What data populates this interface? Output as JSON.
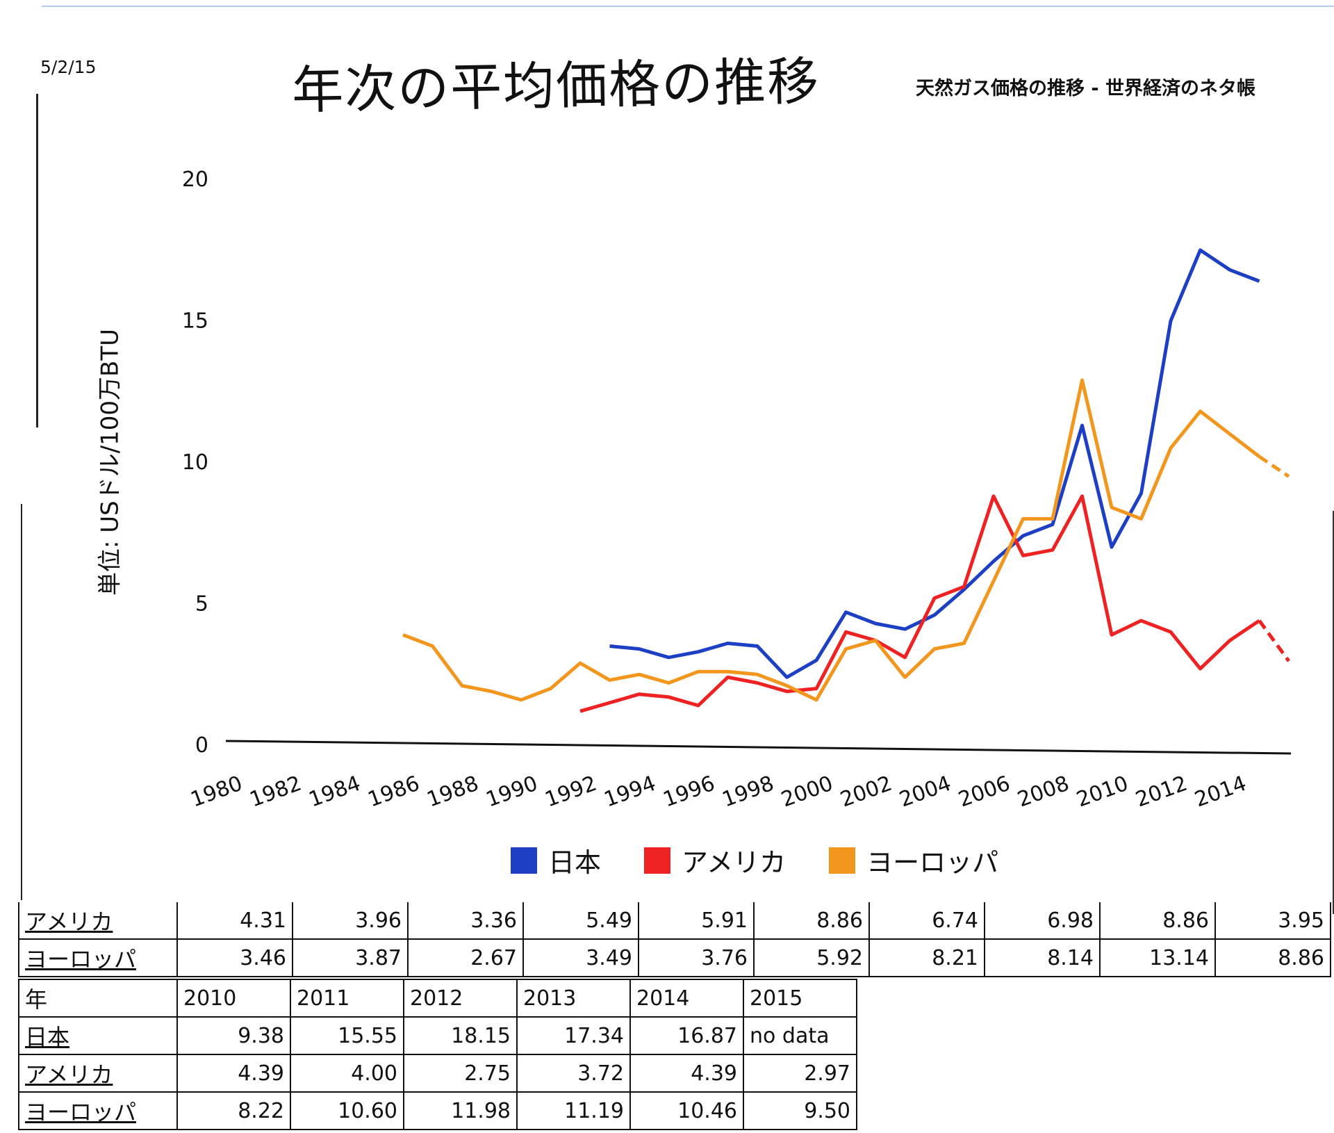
{
  "header": {
    "date_stamp": "5/2/15",
    "handwritten_title": "年次の平均価格の推移",
    "source_title": "天然ガス価格の推移 - 世界経済のネタ帳"
  },
  "chart_data": {
    "type": "line",
    "title": "年次の平均価格の推移",
    "xlabel": "",
    "ylabel": "単位: USドル/100万BTU",
    "ylim": [
      0,
      20
    ],
    "yticks": [
      "0",
      "5",
      "10",
      "15",
      "20"
    ],
    "xticks": [
      "1980",
      "1982",
      "1984",
      "1986",
      "1988",
      "1990",
      "1992",
      "1994",
      "1996",
      "1998",
      "2000",
      "2002",
      "2004",
      "2006",
      "2008",
      "2010",
      "2012",
      "2014"
    ],
    "legend_position": "bottom",
    "grid": false,
    "series": [
      {
        "name": "日本",
        "color": "#1d3fc4",
        "points": [
          [
            1993,
            3.5
          ],
          [
            1994,
            3.4
          ],
          [
            1995,
            3.1
          ],
          [
            1996,
            3.3
          ],
          [
            1997,
            3.6
          ],
          [
            1998,
            3.5
          ],
          [
            1999,
            2.4
          ],
          [
            2000,
            3.0
          ],
          [
            2001,
            4.7
          ],
          [
            2002,
            4.3
          ],
          [
            2003,
            4.1
          ],
          [
            2004,
            4.6
          ],
          [
            2005,
            5.5
          ],
          [
            2006,
            6.5
          ],
          [
            2007,
            7.4
          ],
          [
            2008,
            7.8
          ],
          [
            2009,
            11.3
          ],
          [
            2010,
            7.0
          ],
          [
            2011,
            8.9
          ],
          [
            2012,
            15.0
          ],
          [
            2013,
            17.5
          ],
          [
            2014,
            16.8
          ],
          [
            2015,
            16.4
          ]
        ]
      },
      {
        "name": "アメリカ",
        "color": "#ee2222",
        "points": [
          [
            1992,
            1.2
          ],
          [
            1993,
            1.5
          ],
          [
            1994,
            1.8
          ],
          [
            1995,
            1.7
          ],
          [
            1996,
            1.4
          ],
          [
            1997,
            2.4
          ],
          [
            1998,
            2.2
          ],
          [
            1999,
            1.9
          ],
          [
            2000,
            2.0
          ],
          [
            2001,
            4.0
          ],
          [
            2002,
            3.7
          ],
          [
            2003,
            3.1
          ],
          [
            2004,
            5.2
          ],
          [
            2005,
            5.6
          ],
          [
            2006,
            8.8
          ],
          [
            2007,
            6.7
          ],
          [
            2008,
            6.9
          ],
          [
            2009,
            8.8
          ],
          [
            2010,
            3.9
          ],
          [
            2011,
            4.4
          ],
          [
            2012,
            4.0
          ],
          [
            2013,
            2.7
          ],
          [
            2014,
            3.7
          ],
          [
            2015,
            4.4
          ]
        ],
        "dashed_tail": [
          [
            2015,
            4.4
          ],
          [
            2016,
            2.97
          ]
        ]
      },
      {
        "name": "ヨーロッパ",
        "color": "#f3961e",
        "points": [
          [
            1986,
            3.9
          ],
          [
            1987,
            3.5
          ],
          [
            1988,
            2.1
          ],
          [
            1989,
            1.9
          ],
          [
            1990,
            1.6
          ],
          [
            1991,
            2.0
          ],
          [
            1992,
            2.9
          ],
          [
            1993,
            2.3
          ],
          [
            1994,
            2.5
          ],
          [
            1995,
            2.2
          ],
          [
            1996,
            2.6
          ],
          [
            1997,
            2.6
          ],
          [
            1998,
            2.5
          ],
          [
            1999,
            2.1
          ],
          [
            2000,
            1.6
          ],
          [
            2001,
            3.4
          ],
          [
            2002,
            3.7
          ],
          [
            2003,
            2.4
          ],
          [
            2004,
            3.4
          ],
          [
            2005,
            3.6
          ],
          [
            2006,
            5.8
          ],
          [
            2007,
            8.0
          ],
          [
            2008,
            8.0
          ],
          [
            2009,
            12.9
          ],
          [
            2010,
            8.4
          ],
          [
            2011,
            8.0
          ],
          [
            2012,
            10.5
          ],
          [
            2013,
            11.8
          ],
          [
            2014,
            11.0
          ],
          [
            2015,
            10.2
          ]
        ],
        "dashed_tail": [
          [
            2015,
            10.2
          ],
          [
            2016,
            9.5
          ]
        ]
      }
    ]
  },
  "legend": [
    {
      "label": "日本",
      "color": "#1d3fc4"
    },
    {
      "label": "アメリカ",
      "color": "#ee2222"
    },
    {
      "label": "ヨーロッパ",
      "color": "#f3961e"
    }
  ],
  "table_upper": {
    "rows": [
      {
        "label": "アメリカ",
        "values": [
          "4.31",
          "3.96",
          "3.36",
          "5.49",
          "5.91",
          "8.86",
          "6.74",
          "6.98",
          "8.86",
          "3.95"
        ]
      },
      {
        "label": "ヨーロッパ",
        "values": [
          "3.46",
          "3.87",
          "2.67",
          "3.49",
          "3.76",
          "5.92",
          "8.21",
          "8.14",
          "13.14",
          "8.86"
        ]
      }
    ]
  },
  "table_lower": {
    "year_label": "年",
    "years": [
      "2010",
      "2011",
      "2012",
      "2013",
      "2014",
      "2015"
    ],
    "rows": [
      {
        "label": "日本",
        "values": [
          "9.38",
          "15.55",
          "18.15",
          "17.34",
          "16.87",
          "no data"
        ]
      },
      {
        "label": "アメリカ",
        "values": [
          "4.39",
          "4.00",
          "2.75",
          "3.72",
          "4.39",
          "2.97"
        ]
      },
      {
        "label": "ヨーロッパ",
        "values": [
          "8.22",
          "10.60",
          "11.98",
          "11.19",
          "10.46",
          "9.50"
        ]
      }
    ]
  }
}
